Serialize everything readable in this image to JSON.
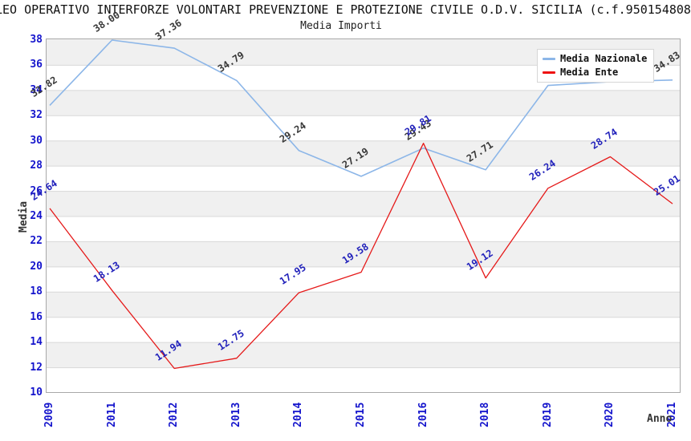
{
  "title": "LEO OPERATIVO INTERFORZE VOLONTARI PREVENZIONE E PROTEZIONE CIVILE O.D.V. SICILIA (c.f.950154808",
  "subtitle": "Media Importi",
  "axes": {
    "y_title": "Media",
    "x_title": "Anno"
  },
  "legend": [
    {
      "label": "Media Nazionale",
      "color": "#8cb6e8"
    },
    {
      "label": "Media Ente",
      "color": "#ee1111"
    }
  ],
  "colors": {
    "tick_label": "#1414cc",
    "band_fill": "#f0f0f0",
    "gridline": "#d8d8d8",
    "plot_border": "#a8a8a8",
    "national_line": "#8cb6e8",
    "ente_line": "#e51919",
    "national_data_label": "#383838",
    "ente_data_label": "#2222bb"
  },
  "chart_data": {
    "type": "line",
    "x": [
      "2009",
      "2011",
      "2012",
      "2013",
      "2014",
      "2015",
      "2016",
      "2018",
      "2019",
      "2020",
      "2021"
    ],
    "series": [
      {
        "name": "Media Nazionale",
        "color": "#8cb6e8",
        "label_color": "#383838",
        "values": [
          32.82,
          38.0,
          37.36,
          34.79,
          29.24,
          27.19,
          29.43,
          27.71,
          34.4,
          34.7,
          34.83
        ],
        "value_labels": [
          "32.82",
          "38.00",
          "37.36",
          "34.79",
          "29.24",
          "27.19",
          "29.43",
          "27.71",
          "",
          "",
          "34.83"
        ],
        "note": "2019 and 2020 value labels hidden behind legend box; values estimated from line position"
      },
      {
        "name": "Media Ente",
        "color": "#e51919",
        "label_color": "#2222bb",
        "values": [
          24.64,
          18.13,
          11.94,
          12.75,
          17.95,
          19.58,
          29.81,
          19.12,
          26.24,
          28.74,
          25.01
        ],
        "value_labels": [
          "24.64",
          "18.13",
          "11.94",
          "12.75",
          "17.95",
          "19.58",
          "29.81",
          "19.12",
          "26.24",
          "28.74",
          "25.01"
        ]
      }
    ],
    "ylim": [
      10,
      38
    ],
    "ytick_step": 2,
    "xlabel": "Anno",
    "ylabel": "Media",
    "grid": "horizontal gridlines every 2 units with alternating gray bands (12-14, 16-18, 20-22, 24-26, 28-30, 32-34, 36-38 shaded)",
    "legend_position": "top-right"
  }
}
